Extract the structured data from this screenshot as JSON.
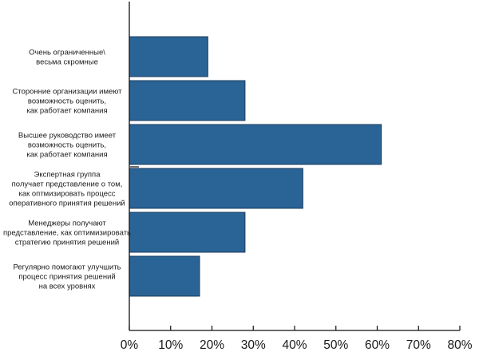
{
  "chart_data": {
    "type": "bar",
    "orientation": "horizontal",
    "categories": [
      [
        "Очень ограниченные\\",
        "весьма скромные"
      ],
      [
        "Сторонние организации имеют",
        "возможность оценить,",
        "как работает компания"
      ],
      [
        "Высшее руководство имеет",
        "возможность оценить,",
        "как работает  компания"
      ],
      [
        "Экспертная группа",
        "получает представление о том,",
        "как оптмизировать процесс",
        "оперативного принятия решений"
      ],
      [
        "Менеджеры получают",
        "представление, как оптимизировать",
        "стратегию принятия  решений"
      ],
      [
        "Регулярно помогают улучшить",
        "процесс принятия решений",
        "на всех уровнях"
      ]
    ],
    "values": [
      19,
      28,
      61,
      42,
      28,
      17
    ],
    "xlim": [
      0,
      80
    ],
    "xticks": [
      0,
      10,
      20,
      30,
      40,
      50,
      60,
      70,
      80
    ],
    "xtick_labels": [
      "0%",
      "10%",
      "20%",
      "30%",
      "40%",
      "50%",
      "60%",
      "70%",
      "80%"
    ],
    "bar_color": "#2a6496",
    "bar_edge_color": "#1b3a5c",
    "grid": false,
    "legend": "none"
  }
}
